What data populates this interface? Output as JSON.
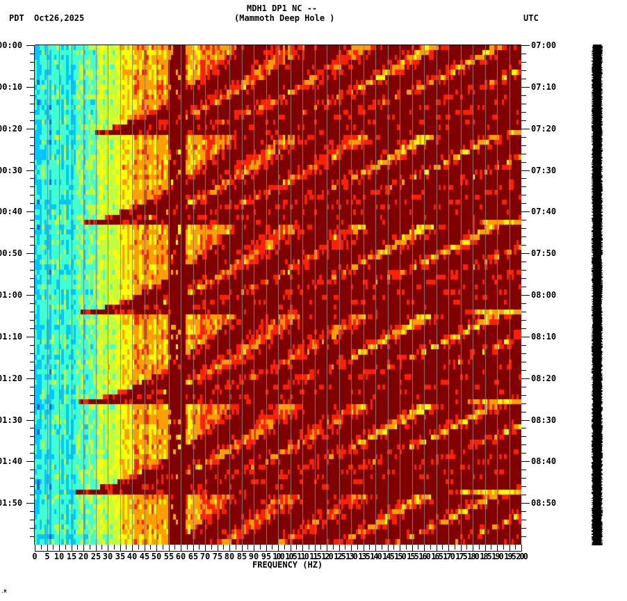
{
  "header": {
    "station_line": "MDH1 DP1 NC --",
    "site_line": "(Mammoth Deep Hole )",
    "left_timezone": "PDT",
    "date": "Oct26,2025",
    "right_timezone": "UTC"
  },
  "footer_mark": ".M",
  "chart_data": {
    "type": "heatmap",
    "title": "MDH1 DP1 NC -- (Mammoth Deep Hole )",
    "xlabel": "FREQUENCY (HZ)",
    "ylabel_left": "PDT",
    "ylabel_right": "UTC",
    "xlim": [
      0,
      200
    ],
    "x_ticks": [
      0,
      5,
      10,
      15,
      20,
      25,
      30,
      35,
      40,
      45,
      50,
      55,
      60,
      65,
      70,
      75,
      80,
      85,
      90,
      95,
      100,
      105,
      110,
      115,
      120,
      125,
      130,
      135,
      140,
      145,
      150,
      155,
      160,
      165,
      170,
      175,
      180,
      185,
      190,
      195,
      200
    ],
    "y_ticks_left": [
      "00:00",
      "00:10",
      "00:20",
      "00:30",
      "00:40",
      "00:50",
      "01:00",
      "01:10",
      "01:20",
      "01:30",
      "01:40",
      "01:50"
    ],
    "y_ticks_right": [
      "07:00",
      "07:10",
      "07:20",
      "07:30",
      "07:40",
      "07:50",
      "08:00",
      "08:10",
      "08:20",
      "08:30",
      "08:40",
      "08:50"
    ],
    "time_range_minutes": [
      0,
      120
    ],
    "grid": {
      "vertical_every_hz": 5,
      "color": "#808080"
    },
    "colormap": [
      "#0060ff",
      "#00c8ff",
      "#40ffd0",
      "#c0ff40",
      "#ffff00",
      "#ffa000",
      "#ff2000",
      "#800000"
    ],
    "sweep_events_start_min": [
      0,
      21,
      42.5,
      64,
      85.5,
      107
    ],
    "sweep_period_min": 21.5,
    "sweep_note": "Repeating chirp-like harmonic sweeps (dark red) rising from ~20 Hz, ending ~every 21.5 minutes; persistent ~60 Hz band; low frequencies (<25 Hz) cyan/blue, >130 Hz orange/yellow noise",
    "strong_line_hz": 60
  }
}
